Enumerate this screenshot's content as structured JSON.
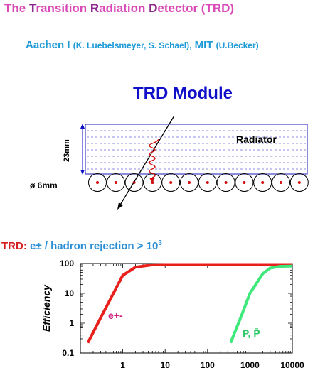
{
  "title": {
    "parts": [
      {
        "t": "The ",
        "cap": false
      },
      {
        "t": "T",
        "cap": true
      },
      {
        "t": "ransition ",
        "cap": false
      },
      {
        "t": "R",
        "cap": true
      },
      {
        "t": "adiation ",
        "cap": false
      },
      {
        "t": "D",
        "cap": true
      },
      {
        "t": "etector (TRD)",
        "cap": false
      }
    ]
  },
  "authors": {
    "group1": "Aachen I",
    "group1_names": "(K. Luebelsmeyer, S. Schael),",
    "group2": "MIT",
    "group2_names": "(U.Becker)"
  },
  "module": {
    "title": "TRD Module",
    "radiator_label": "Radiator",
    "thickness_label": "23mm",
    "diameter_label": "ø  6mm",
    "tube_count": 12
  },
  "rejection": {
    "prefix": "TRD:",
    "text": " e± / hadron rejection > 10",
    "exponent": "3"
  },
  "colors": {
    "title_pink": "#d94ab8",
    "authors_blue": "#1e9ad6",
    "module_blue": "#1010c8",
    "radiator_box": "#4040c0",
    "electron_curve": "#e8201c",
    "proton_curve": "#3ee87a",
    "tube_dot": "#d01010",
    "photon_wave": "#d01010"
  },
  "chart_data": {
    "type": "line",
    "ylabel": "Efficiency",
    "xlabel": "",
    "x_scale": "log",
    "y_scale": "log",
    "xlim": [
      0.1,
      10000
    ],
    "ylim": [
      0.1,
      100
    ],
    "x_tick_labels": [
      "1",
      "10",
      "100",
      "1000",
      "10000"
    ],
    "y_tick_labels": [
      "100",
      "10",
      "1",
      "0.1"
    ],
    "series": [
      {
        "name": "e+-",
        "color": "#e8201c",
        "x": [
          0.15,
          0.3,
          0.6,
          1,
          2,
          5,
          10,
          100,
          1000,
          10000
        ],
        "y": [
          0.22,
          1.5,
          10,
          40,
          75,
          90,
          92,
          92,
          92,
          92
        ]
      },
      {
        "name": "P, P̄",
        "color": "#3ee87a",
        "x": [
          350,
          600,
          1000,
          2000,
          3000,
          5000,
          10000
        ],
        "y": [
          0.22,
          1.5,
          10,
          45,
          70,
          80,
          82
        ]
      }
    ]
  }
}
